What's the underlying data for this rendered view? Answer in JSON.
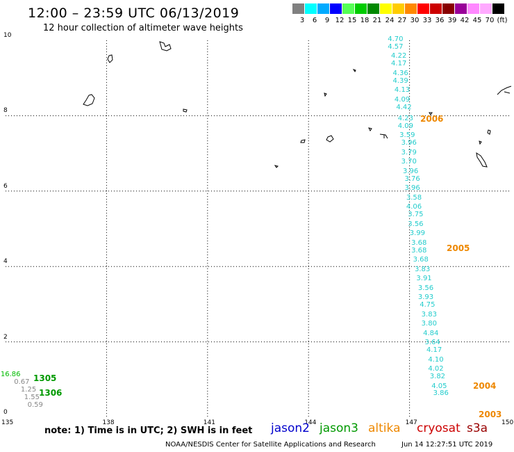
{
  "title": "12:00 – 23:59 UTC 06/13/2019",
  "subtitle": "12 hour collection of altimeter wave heights",
  "scale": {
    "colors": [
      "#808080",
      "#00ffff",
      "#00aaff",
      "#0000ff",
      "#55ff55",
      "#00cc00",
      "#008800",
      "#ffff00",
      "#ffcc00",
      "#ff8800",
      "#ff0000",
      "#cc0000",
      "#880000",
      "#990099",
      "#ff88ff",
      "#ffaaff",
      "#000000"
    ],
    "labels": [
      "3",
      "6",
      "9",
      "12",
      "15",
      "18",
      "21",
      "24",
      "27",
      "30",
      "33",
      "36",
      "39",
      "42",
      "45",
      "70",
      "(ft)"
    ]
  },
  "axes": {
    "x_ticks": [
      "135",
      "138",
      "141",
      "144",
      "147",
      "150"
    ],
    "y_ticks": [
      "0",
      "2",
      "4",
      "6",
      "8",
      "10"
    ]
  },
  "chart_data": {
    "type": "scatter",
    "xlim": [
      135,
      150
    ],
    "ylim": [
      0,
      10
    ],
    "grid": true,
    "tracks": [
      {
        "satellite": "jason3",
        "cycle_label": "1305",
        "color": "#009900",
        "points": [
          {
            "lon": 135.1,
            "lat": 1.1,
            "value": "16.86",
            "color": "#00bb00"
          },
          {
            "lon": 135.5,
            "lat": 0.9,
            "value": "0.67",
            "color": "#888888"
          },
          {
            "lon": 135.7,
            "lat": 0.7,
            "value": "1.25",
            "color": "#888888"
          },
          {
            "lon": 135.8,
            "lat": 0.5,
            "value": "1.55",
            "color": "#888888"
          },
          {
            "lon": 135.9,
            "lat": 0.3,
            "value": "0.59",
            "color": "#888888"
          }
        ]
      },
      {
        "satellite": "altika",
        "cycle_label": "1306",
        "color": "#009900",
        "points": []
      },
      {
        "satellite": "altika",
        "cycle_label": "2006",
        "color": "#ee8800",
        "points": [
          {
            "lon": 146.6,
            "lat": 10.0,
            "value": "4.70"
          },
          {
            "lon": 146.6,
            "lat": 9.8,
            "value": "4.57"
          },
          {
            "lon": 146.7,
            "lat": 9.55,
            "value": "4.22"
          },
          {
            "lon": 146.7,
            "lat": 9.35,
            "value": "4.17"
          },
          {
            "lon": 146.75,
            "lat": 9.1,
            "value": "4.36"
          },
          {
            "lon": 146.75,
            "lat": 8.9,
            "value": "4.39"
          },
          {
            "lon": 146.8,
            "lat": 8.65,
            "value": "4.13"
          },
          {
            "lon": 146.8,
            "lat": 8.4,
            "value": "4.09"
          },
          {
            "lon": 146.85,
            "lat": 8.2,
            "value": "4.42"
          },
          {
            "lon": 146.9,
            "lat": 7.9,
            "value": "4.23"
          },
          {
            "lon": 146.9,
            "lat": 7.7,
            "value": "4.09"
          },
          {
            "lon": 146.95,
            "lat": 7.45,
            "value": "3.59"
          },
          {
            "lon": 147.0,
            "lat": 7.25,
            "value": "3.96"
          },
          {
            "lon": 147.0,
            "lat": 7.0,
            "value": "3.79"
          },
          {
            "lon": 147.0,
            "lat": 6.75,
            "value": "3.70"
          },
          {
            "lon": 147.05,
            "lat": 6.5,
            "value": "3.96"
          },
          {
            "lon": 147.1,
            "lat": 6.3,
            "value": "3.76"
          },
          {
            "lon": 147.1,
            "lat": 6.05,
            "value": "3.96"
          },
          {
            "lon": 147.15,
            "lat": 5.8,
            "value": "3.58"
          },
          {
            "lon": 147.15,
            "lat": 5.55,
            "value": "4.06"
          },
          {
            "lon": 147.2,
            "lat": 5.35,
            "value": "3.75"
          },
          {
            "lon": 147.2,
            "lat": 5.1,
            "value": "3.56"
          }
        ]
      },
      {
        "satellite": "altika",
        "cycle_label": "2005",
        "color": "#ee8800",
        "points": [
          {
            "lon": 147.25,
            "lat": 4.85,
            "value": "3.99"
          },
          {
            "lon": 147.3,
            "lat": 4.6,
            "value": "3.68"
          },
          {
            "lon": 147.3,
            "lat": 4.4,
            "value": "3.68"
          },
          {
            "lon": 147.35,
            "lat": 4.15,
            "value": "3.68"
          },
          {
            "lon": 147.4,
            "lat": 3.9,
            "value": "3.83"
          },
          {
            "lon": 147.45,
            "lat": 3.65,
            "value": "3.91"
          },
          {
            "lon": 147.5,
            "lat": 3.4,
            "value": "3.56"
          },
          {
            "lon": 147.5,
            "lat": 3.15,
            "value": "3.93"
          },
          {
            "lon": 147.55,
            "lat": 2.95,
            "value": "4.75"
          },
          {
            "lon": 147.6,
            "lat": 2.7,
            "value": "3.83"
          },
          {
            "lon": 147.6,
            "lat": 2.45,
            "value": "3.80"
          }
        ]
      },
      {
        "satellite": "altika",
        "cycle_label": "2004",
        "color": "#ee8800",
        "points": [
          {
            "lon": 147.65,
            "lat": 2.2,
            "value": "4.84"
          },
          {
            "lon": 147.7,
            "lat": 1.95,
            "value": "3.64"
          },
          {
            "lon": 147.75,
            "lat": 1.75,
            "value": "4.17"
          },
          {
            "lon": 147.8,
            "lat": 1.5,
            "value": "4.10"
          },
          {
            "lon": 147.8,
            "lat": 1.25,
            "value": "4.02"
          }
        ]
      },
      {
        "satellite": "altika",
        "cycle_label": "2003",
        "color": "#ee8800",
        "points": [
          {
            "lon": 147.85,
            "lat": 1.05,
            "value": "3.82"
          },
          {
            "lon": 147.9,
            "lat": 0.8,
            "value": "4.05"
          },
          {
            "lon": 147.95,
            "lat": 0.6,
            "value": "3.86"
          }
        ]
      }
    ]
  },
  "note": "note:  1) Time is in UTC;  2) SWH is in feet",
  "legend": [
    {
      "name": "jason2",
      "color": "#0000cc"
    },
    {
      "name": "jason3",
      "color": "#009900"
    },
    {
      "name": "altika",
      "color": "#ee8800"
    },
    {
      "name": "cryosat",
      "color": "#cc0000"
    },
    {
      "name": "s3a",
      "color": "#990000"
    }
  ],
  "credit": "NOAA/NESDIS Center for Satellite Applications and Research",
  "timestamp": "Jun 14 12:27:51 UTC 2019"
}
